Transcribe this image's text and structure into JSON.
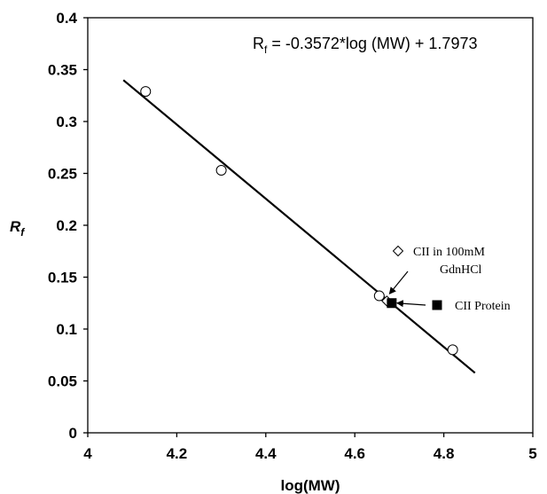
{
  "chart_data": {
    "type": "scatter",
    "xlabel": "log(MW)",
    "ylabel_main": "R",
    "ylabel_sub": "f",
    "xlim": [
      4,
      5
    ],
    "ylim": [
      0,
      0.4
    ],
    "xticks": [
      4,
      4.2,
      4.4,
      4.6,
      4.8,
      5
    ],
    "xtick_labels": [
      "4",
      "4.2",
      "4.4",
      "4.6",
      "4.8",
      "5"
    ],
    "yticks": [
      0,
      0.05,
      0.1,
      0.15,
      0.2,
      0.25,
      0.3,
      0.35,
      0.4
    ],
    "ytick_labels": [
      "0",
      "0.05",
      "0.1",
      "0.15",
      "0.2",
      "0.25",
      "0.3",
      "0.35",
      "0.4"
    ],
    "grid": false,
    "series": [
      {
        "marker": "open-circle",
        "points": [
          {
            "x": 4.13,
            "y": 0.329
          },
          {
            "x": 4.3,
            "y": 0.253
          },
          {
            "x": 4.655,
            "y": 0.132
          },
          {
            "x": 4.82,
            "y": 0.08
          }
        ]
      },
      {
        "marker": "open-diamond",
        "points": [
          {
            "x": 4.672,
            "y": 0.127
          }
        ]
      },
      {
        "marker": "filled-square",
        "points": [
          {
            "x": 4.683,
            "y": 0.125
          }
        ]
      }
    ],
    "fit": {
      "slope": -0.3572,
      "intercept": 1.7973,
      "x_range": [
        4.08,
        4.87
      ],
      "equation_main": "R",
      "equation_sub": "f",
      "equation_rest": " = -0.3572*log (MW) + 1.7973"
    },
    "annotations": [
      {
        "marker": "open-diamond",
        "line1": "CII in 100mM",
        "line2": "GdnHCl",
        "arrow_to": {
          "x": 4.678,
          "y": 0.134
        }
      },
      {
        "marker": "filled-square",
        "text": "CII  Protein",
        "arrow_to": {
          "x": 4.695,
          "y": 0.125
        }
      }
    ]
  }
}
